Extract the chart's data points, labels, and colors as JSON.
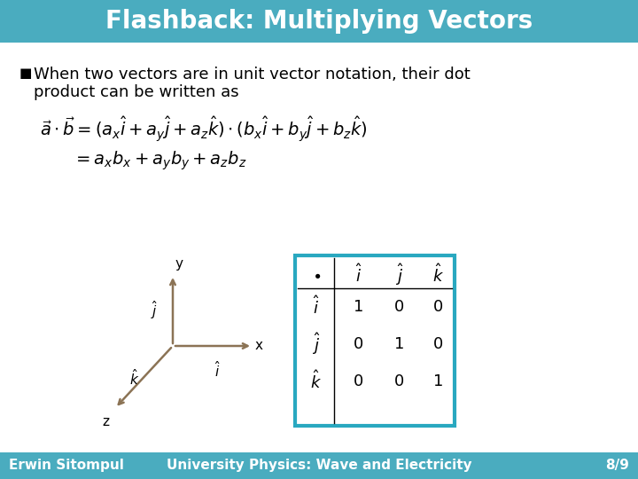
{
  "title": "Flashback: Multiplying Vectors",
  "title_bg_color": "#4AACBF",
  "title_text_color": "#FFFFFF",
  "slide_bg_color": "#FFFFFF",
  "bullet_text_line1": "When two vectors are in unit vector notation, their dot",
  "bullet_text_line2": "product can be written as",
  "footer_left": "Erwin Sitompul",
  "footer_right": "University Physics: Wave and Electricity",
  "footer_page": "8/9",
  "footer_bg_color": "#4AACBF",
  "footer_text_color": "#FFFFFF",
  "table_border_color": "#29A8C0",
  "axis_color": "#8B7355",
  "text_font_size": 13,
  "title_font_size": 20,
  "table_data": [
    [
      1,
      0,
      0
    ],
    [
      0,
      1,
      0
    ],
    [
      0,
      0,
      1
    ]
  ]
}
